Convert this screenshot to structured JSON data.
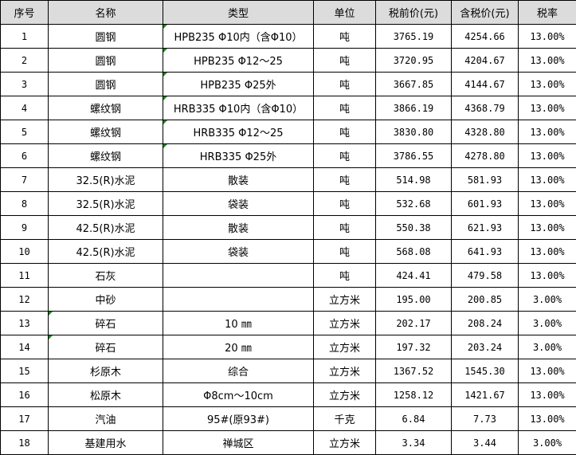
{
  "headers": [
    "序号",
    "名称",
    "类型",
    "单位",
    "税前价(元)",
    "含税价(元)",
    "税率"
  ],
  "flag_color": "#1a8a1a",
  "rows": [
    {
      "no": "1",
      "name": "圆钢",
      "type": "HPB235 Φ10内（含Φ10）",
      "unit": "吨",
      "pre": "3765.19",
      "post": "4254.66",
      "rate": "13.00%",
      "flag": "type"
    },
    {
      "no": "2",
      "name": "圆钢",
      "type": "HPB235 Φ12～25",
      "unit": "吨",
      "pre": "3720.95",
      "post": "4204.67",
      "rate": "13.00%",
      "flag": "type"
    },
    {
      "no": "3",
      "name": "圆钢",
      "type": "HPB235 Φ25外",
      "unit": "吨",
      "pre": "3667.85",
      "post": "4144.67",
      "rate": "13.00%",
      "flag": "type"
    },
    {
      "no": "4",
      "name": "螺纹钢",
      "type": "HRB335 Φ10内（含Φ10）",
      "unit": "吨",
      "pre": "3866.19",
      "post": "4368.79",
      "rate": "13.00%",
      "flag": "type"
    },
    {
      "no": "5",
      "name": "螺纹钢",
      "type": "HRB335 Φ12～25",
      "unit": "吨",
      "pre": "3830.80",
      "post": "4328.80",
      "rate": "13.00%",
      "flag": "type"
    },
    {
      "no": "6",
      "name": "螺纹钢",
      "type": "HRB335 Φ25外",
      "unit": "吨",
      "pre": "3786.55",
      "post": "4278.80",
      "rate": "13.00%",
      "flag": "type"
    },
    {
      "no": "7",
      "name": "32.5(R)水泥",
      "type": "散装",
      "unit": "吨",
      "pre": "514.98",
      "post": "581.93",
      "rate": "13.00%"
    },
    {
      "no": "8",
      "name": "32.5(R)水泥",
      "type": "袋装",
      "unit": "吨",
      "pre": "532.68",
      "post": "601.93",
      "rate": "13.00%"
    },
    {
      "no": "9",
      "name": "42.5(R)水泥",
      "type": "散装",
      "unit": "吨",
      "pre": "550.38",
      "post": "621.93",
      "rate": "13.00%"
    },
    {
      "no": "10",
      "name": "42.5(R)水泥",
      "type": "袋装",
      "unit": "吨",
      "pre": "568.08",
      "post": "641.93",
      "rate": "13.00%"
    },
    {
      "no": "11",
      "name": "石灰",
      "type": "",
      "unit": "吨",
      "pre": "424.41",
      "post": "479.58",
      "rate": "13.00%"
    },
    {
      "no": "12",
      "name": "中砂",
      "type": "",
      "unit": "立方米",
      "pre": "195.00",
      "post": "200.85",
      "rate": "3.00%"
    },
    {
      "no": "13",
      "name": "碎石",
      "type": "10 ㎜",
      "unit": "立方米",
      "pre": "202.17",
      "post": "208.24",
      "rate": "3.00%",
      "flag": "name"
    },
    {
      "no": "14",
      "name": "碎石",
      "type": "20 ㎜",
      "unit": "立方米",
      "pre": "197.32",
      "post": "203.24",
      "rate": "3.00%",
      "flag": "name"
    },
    {
      "no": "15",
      "name": "杉原木",
      "type": "综合",
      "unit": "立方米",
      "pre": "1367.52",
      "post": "1545.30",
      "rate": "13.00%"
    },
    {
      "no": "16",
      "name": "松原木",
      "type": "Φ8cm～10cm",
      "unit": "立方米",
      "pre": "1258.12",
      "post": "1421.67",
      "rate": "13.00%"
    },
    {
      "no": "17",
      "name": "汽油",
      "type": "95#(原93#)",
      "unit": "千克",
      "pre": "6.84",
      "post": "7.73",
      "rate": "13.00%"
    },
    {
      "no": "18",
      "name": "基建用水",
      "type": "禅城区",
      "unit": "立方米",
      "pre": "3.34",
      "post": "3.44",
      "rate": "3.00%"
    }
  ]
}
